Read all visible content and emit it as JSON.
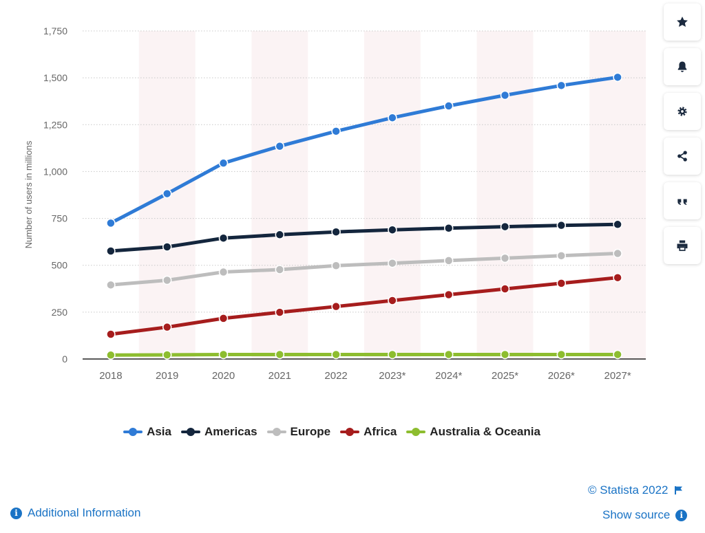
{
  "chart_data": {
    "type": "line",
    "ylabel": "Number of users in millions",
    "categories": [
      "2018",
      "2019",
      "2020",
      "2021",
      "2022",
      "2023*",
      "2024*",
      "2025*",
      "2026*",
      "2027*"
    ],
    "yticks": [
      "0",
      "250",
      "500",
      "750",
      "1,000",
      "1,250",
      "1,500",
      "1,750"
    ],
    "ylim": [
      0,
      1750
    ],
    "grid": true,
    "legend_position": "bottom",
    "series": [
      {
        "name": "Asia",
        "color": "#2f7bd6",
        "values": [
          725,
          882,
          1045,
          1135,
          1215,
          1287,
          1350,
          1407,
          1459,
          1503
        ]
      },
      {
        "name": "Americas",
        "color": "#14263d",
        "values": [
          576,
          598,
          645,
          663,
          678,
          689,
          698,
          706,
          713,
          718
        ]
      },
      {
        "name": "Europe",
        "color": "#bdbdbd",
        "values": [
          395,
          420,
          464,
          477,
          498,
          511,
          525,
          538,
          551,
          563
        ]
      },
      {
        "name": "Africa",
        "color": "#a61d1d",
        "values": [
          132,
          170,
          217,
          249,
          280,
          312,
          343,
          374,
          404,
          434
        ]
      },
      {
        "name": "Australia & Oceania",
        "color": "#8dbd2f",
        "values": [
          21,
          22,
          24,
          24,
          24,
          24,
          24,
          24,
          24,
          24
        ]
      }
    ]
  },
  "toolbar": [
    {
      "id": "favorite",
      "icon": "star-icon"
    },
    {
      "id": "notification",
      "icon": "bell-icon"
    },
    {
      "id": "settings",
      "icon": "gear-icon"
    },
    {
      "id": "share",
      "icon": "share-icon"
    },
    {
      "id": "cite",
      "icon": "quote-icon"
    },
    {
      "id": "print",
      "icon": "print-icon"
    }
  ],
  "footer": {
    "copyright": "© Statista 2022",
    "additional_info": "Additional Information",
    "show_source": "Show source"
  },
  "colors": {
    "accent": "#1a73c5",
    "band": "#fbf3f4",
    "grid": "#c8c8c8"
  }
}
